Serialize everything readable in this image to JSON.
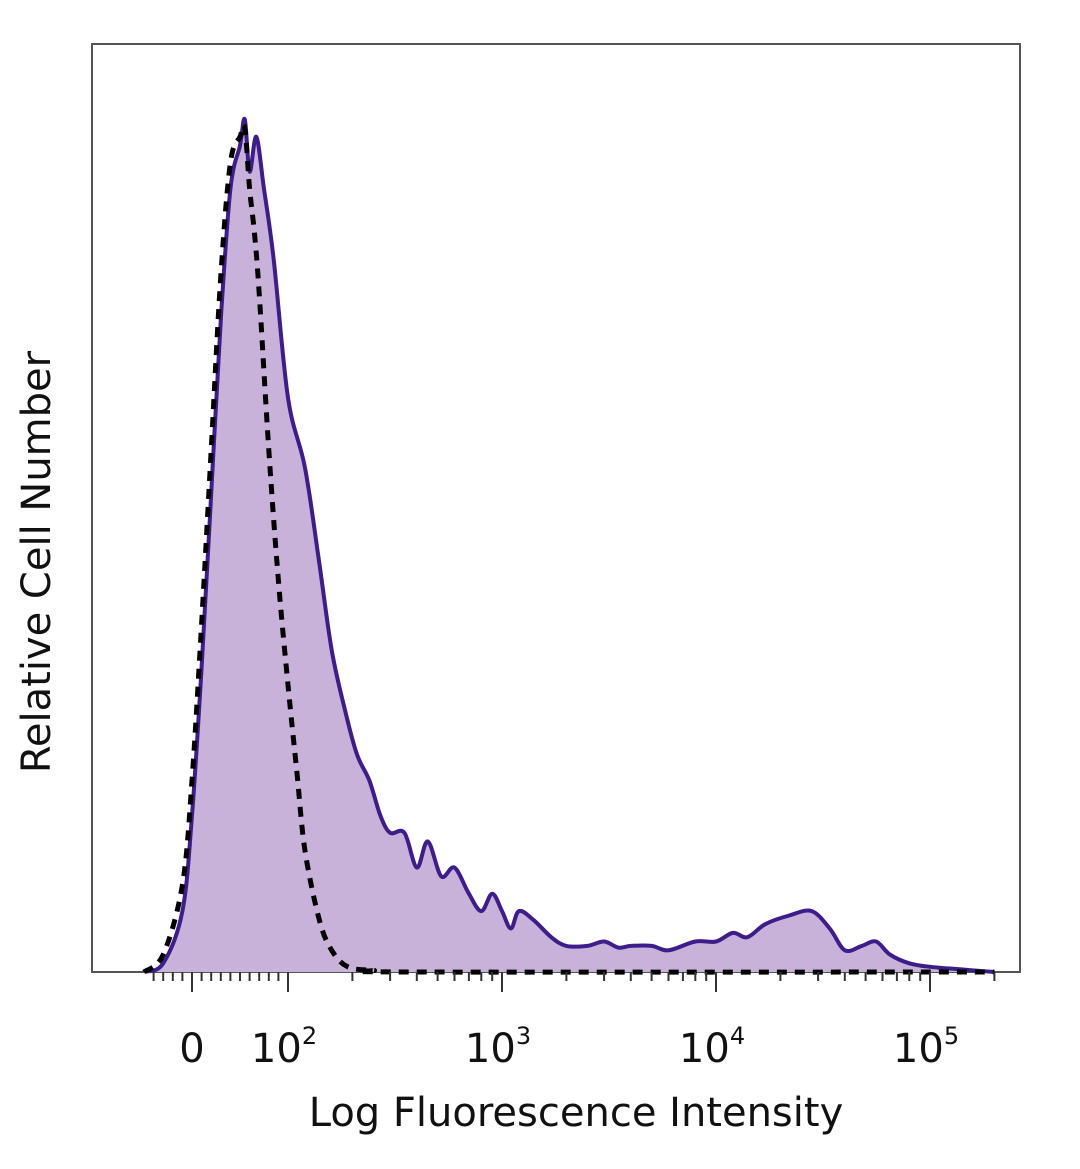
{
  "chart_data": {
    "type": "area",
    "title": "",
    "xlabel": "Log Fluorescence Intensity",
    "ylabel": "Relative Cell Number",
    "x_scale": "biexponential",
    "xlim": [
      -50,
      200000
    ],
    "ylim": [
      0,
      100
    ],
    "grid": false,
    "legend": "none",
    "x_tick_labels": [
      {
        "value": 0,
        "base": "0",
        "exp": ""
      },
      {
        "value": 100,
        "base": "10",
        "exp": "2"
      },
      {
        "value": 1000,
        "base": "10",
        "exp": "3"
      },
      {
        "value": 10000,
        "base": "10",
        "exp": "4"
      },
      {
        "value": 100000,
        "base": "10",
        "exp": "5"
      }
    ],
    "series": [
      {
        "style": "filled-solid",
        "line_color": "#3d1c8c",
        "fill_color": "#c9b2d9",
        "points": [
          [
            -50,
            0
          ],
          [
            -30,
            1
          ],
          [
            -10,
            7
          ],
          [
            0,
            18
          ],
          [
            10,
            35
          ],
          [
            20,
            55
          ],
          [
            30,
            75
          ],
          [
            40,
            90
          ],
          [
            50,
            95
          ],
          [
            55,
            98
          ],
          [
            60,
            92
          ],
          [
            67,
            96
          ],
          [
            75,
            90
          ],
          [
            85,
            82
          ],
          [
            100,
            66
          ],
          [
            120,
            58
          ],
          [
            140,
            47
          ],
          [
            160,
            37
          ],
          [
            185,
            30
          ],
          [
            210,
            25
          ],
          [
            240,
            22
          ],
          [
            270,
            18
          ],
          [
            300,
            16
          ],
          [
            350,
            16
          ],
          [
            400,
            12
          ],
          [
            450,
            15
          ],
          [
            520,
            11
          ],
          [
            600,
            12
          ],
          [
            700,
            9
          ],
          [
            800,
            7
          ],
          [
            900,
            9
          ],
          [
            1000,
            7
          ],
          [
            1100,
            5
          ],
          [
            1200,
            7
          ],
          [
            1400,
            6
          ],
          [
            1700,
            4
          ],
          [
            2000,
            3
          ],
          [
            2500,
            3
          ],
          [
            3000,
            3.5
          ],
          [
            3500,
            2.8
          ],
          [
            4000,
            3
          ],
          [
            5000,
            3
          ],
          [
            6000,
            2.5
          ],
          [
            8000,
            3.5
          ],
          [
            10000,
            3.5
          ],
          [
            12000,
            4.5
          ],
          [
            14000,
            4
          ],
          [
            17000,
            5.5
          ],
          [
            22000,
            6.5
          ],
          [
            28000,
            7
          ],
          [
            34000,
            5
          ],
          [
            40000,
            2.5
          ],
          [
            48000,
            3
          ],
          [
            56000,
            3.5
          ],
          [
            65000,
            2
          ],
          [
            80000,
            1
          ],
          [
            100000,
            0.6
          ],
          [
            140000,
            0.3
          ],
          [
            200000,
            0
          ]
        ]
      },
      {
        "style": "dashed",
        "line_color": "#000000",
        "fill_color": "none",
        "points": [
          [
            -50,
            0
          ],
          [
            -30,
            2
          ],
          [
            -10,
            10
          ],
          [
            0,
            22
          ],
          [
            10,
            40
          ],
          [
            20,
            60
          ],
          [
            30,
            80
          ],
          [
            40,
            93
          ],
          [
            50,
            96
          ],
          [
            55,
            97
          ],
          [
            60,
            90
          ],
          [
            65,
            85
          ],
          [
            70,
            78
          ],
          [
            80,
            60
          ],
          [
            90,
            45
          ],
          [
            100,
            33
          ],
          [
            110,
            23
          ],
          [
            120,
            14
          ],
          [
            140,
            6
          ],
          [
            160,
            2.5
          ],
          [
            190,
            0.6
          ],
          [
            250,
            0.2
          ],
          [
            400,
            0
          ],
          [
            200000,
            0
          ]
        ]
      }
    ]
  }
}
